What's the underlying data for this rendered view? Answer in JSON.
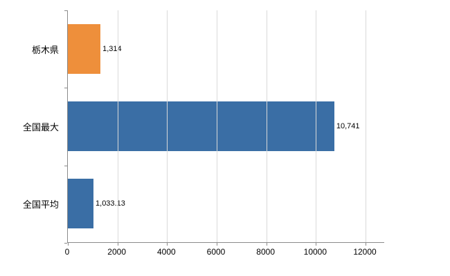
{
  "chart_data": {
    "type": "bar",
    "orientation": "horizontal",
    "title": "",
    "categories": [
      "栃木県",
      "全国最大",
      "全国平均"
    ],
    "values": [
      1314,
      10741,
      1033.13
    ],
    "value_labels": [
      "1,314",
      "10,741",
      "1,033.13"
    ],
    "series_colors": [
      "#EE8F3B",
      "#3A6EA5",
      "#3A6EA5"
    ],
    "x_ticks": [
      0,
      2000,
      4000,
      6000,
      8000,
      10000,
      12000
    ],
    "x_tick_labels": [
      "0",
      "2000",
      "4000",
      "6000",
      "8000",
      "10000",
      "12000"
    ],
    "xlim": [
      0,
      12780
    ],
    "grid": true,
    "legend": "none",
    "colors": {
      "gridline": "#d9d9d9",
      "axis": "#8a8a8a",
      "text": "#000000"
    }
  }
}
